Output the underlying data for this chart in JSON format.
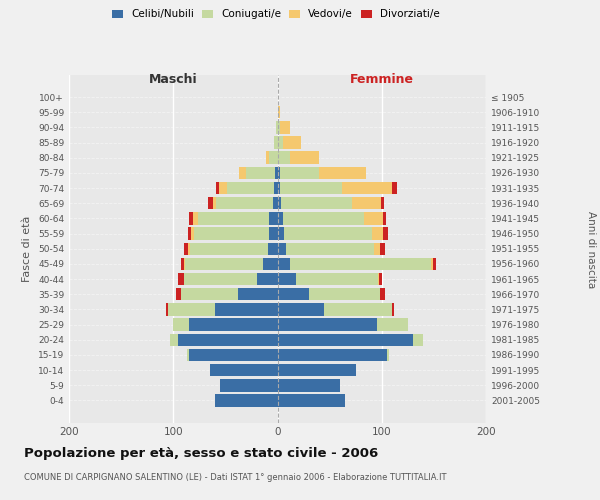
{
  "age_groups": [
    "0-4",
    "5-9",
    "10-14",
    "15-19",
    "20-24",
    "25-29",
    "30-34",
    "35-39",
    "40-44",
    "45-49",
    "50-54",
    "55-59",
    "60-64",
    "65-69",
    "70-74",
    "75-79",
    "80-84",
    "85-89",
    "90-94",
    "95-99",
    "100+"
  ],
  "birth_years": [
    "2001-2005",
    "1996-2000",
    "1991-1995",
    "1986-1990",
    "1981-1985",
    "1976-1980",
    "1971-1975",
    "1966-1970",
    "1961-1965",
    "1956-1960",
    "1951-1955",
    "1946-1950",
    "1941-1945",
    "1936-1940",
    "1931-1935",
    "1926-1930",
    "1921-1925",
    "1916-1920",
    "1911-1915",
    "1906-1910",
    "≤ 1905"
  ],
  "colors": {
    "celibi": "#3a6ea5",
    "coniugati": "#c5d9a0",
    "vedovi": "#f5c86e",
    "divorziati": "#cc2222"
  },
  "maschi": {
    "celibi": [
      60,
      55,
      65,
      85,
      95,
      85,
      60,
      38,
      20,
      14,
      9,
      8,
      8,
      4,
      3,
      2,
      0,
      0,
      0,
      0,
      0
    ],
    "coniugati": [
      0,
      0,
      0,
      2,
      8,
      15,
      45,
      55,
      70,
      75,
      75,
      72,
      68,
      55,
      45,
      28,
      8,
      3,
      1,
      0,
      0
    ],
    "vedovi": [
      0,
      0,
      0,
      0,
      0,
      0,
      0,
      0,
      0,
      1,
      2,
      3,
      5,
      3,
      8,
      7,
      3,
      0,
      0,
      0,
      0
    ],
    "divorziati": [
      0,
      0,
      0,
      0,
      0,
      0,
      2,
      4,
      5,
      3,
      4,
      3,
      4,
      5,
      3,
      0,
      0,
      0,
      0,
      0,
      0
    ]
  },
  "femmine": {
    "celibi": [
      65,
      60,
      75,
      105,
      130,
      95,
      45,
      30,
      18,
      12,
      8,
      6,
      5,
      3,
      2,
      2,
      0,
      0,
      0,
      0,
      0
    ],
    "coniugati": [
      0,
      0,
      0,
      2,
      10,
      30,
      65,
      68,
      78,
      135,
      85,
      85,
      78,
      68,
      60,
      38,
      12,
      5,
      2,
      0,
      0
    ],
    "vedovi": [
      0,
      0,
      0,
      0,
      0,
      0,
      0,
      0,
      1,
      2,
      5,
      10,
      18,
      28,
      48,
      45,
      28,
      18,
      10,
      2,
      0
    ],
    "divorziati": [
      0,
      0,
      0,
      0,
      0,
      0,
      2,
      5,
      3,
      3,
      5,
      5,
      3,
      3,
      5,
      0,
      0,
      0,
      0,
      0,
      0
    ]
  },
  "title": "Popolazione per età, sesso e stato civile - 2006",
  "subtitle": "COMUNE DI CARPIGNANO SALENTINO (LE) - Dati ISTAT 1° gennaio 2006 - Elaborazione TUTTITALIA.IT",
  "xlabel_left": "Maschi",
  "xlabel_right": "Femmine",
  "ylabel_left": "Fasce di età",
  "ylabel_right": "Anni di nascita",
  "legend_labels": [
    "Celibi/Nubili",
    "Coniugati/e",
    "Vedovi/e",
    "Divorziati/e"
  ],
  "xlim": 200,
  "bg_color": "#f0f0f0"
}
